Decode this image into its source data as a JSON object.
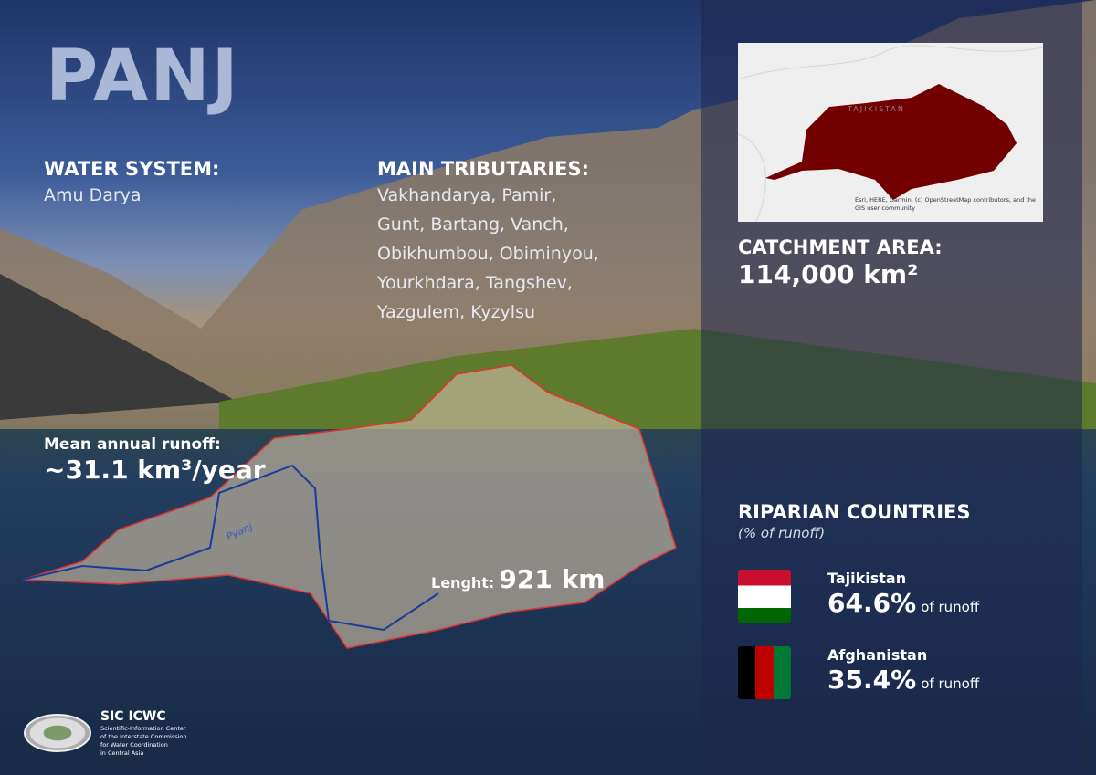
{
  "title": "PANJ",
  "water_system": {
    "label": "WATER SYSTEM:",
    "value": "Amu Darya"
  },
  "tributaries": {
    "label": "MAIN TRIBUTARIES:",
    "lines": [
      "Vakhandarya, Pamir,",
      "Gunt, Bartang, Vanch,",
      "Obikhumbou, Obiminyou,",
      "Yourkhdara, Tangshev,",
      "Yazgulem, Kyzylsu"
    ]
  },
  "runoff": {
    "label": "Mean annual runoff:",
    "value": "~31.1 km³/year"
  },
  "length": {
    "label": "Lenght:",
    "value": "921 km"
  },
  "river_label": "Pyanj",
  "map": {
    "country_label": "TAJIKISTAN",
    "attribution": "Esri, HERE, Garmin, (c) OpenStreetMap contributors, and the GIS user community",
    "basin_color": "#720000"
  },
  "catchment": {
    "label": "CATCHMENT AREA:",
    "value": "114,000 km²"
  },
  "riparian": {
    "label": "RIPARIAN COUNTRIES",
    "sub": "(% of runoff)",
    "countries": [
      {
        "name": "Tajikistan",
        "share": "64.6%",
        "suffix": "of runoff",
        "icon": "tajikistan-flag-icon"
      },
      {
        "name": "Afghanistan",
        "share": "35.4%",
        "suffix": "of runoff",
        "icon": "afghanistan-flag-icon"
      }
    ]
  },
  "logo": {
    "name": "SIC ICWC",
    "desc": [
      "Scientific-Information Center",
      "of the Interstate Commission",
      "for Water Coordination",
      "in Central Asia"
    ],
    "seal_text": "МКВК ICWC"
  }
}
